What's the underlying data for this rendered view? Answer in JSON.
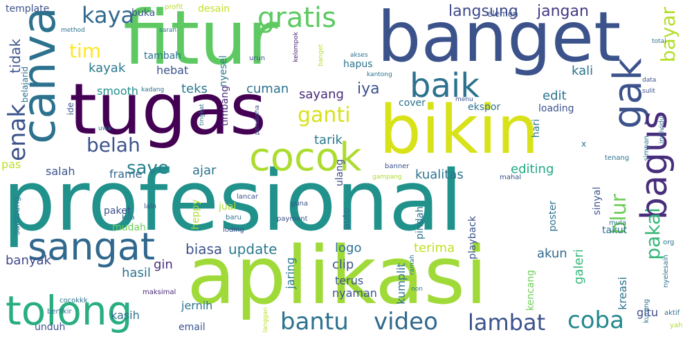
{
  "words": [
    {
      "text": "profesional",
      "color": "#21918c"
    },
    {
      "text": "aplikasi",
      "color": "#a0da39"
    },
    {
      "text": "tugas",
      "color": "#440154"
    },
    {
      "text": "fitur",
      "color": "#5ec962"
    },
    {
      "text": "banget",
      "color": "#3b528b"
    },
    {
      "text": "bikin",
      "color": "#d8e219"
    },
    {
      "text": "canva",
      "color": "#2c728e"
    },
    {
      "text": "tolong",
      "color": "#28ae80"
    },
    {
      "text": "sangat",
      "color": "#31688e"
    },
    {
      "text": "cocok",
      "color": "#addc30"
    },
    {
      "text": "baik",
      "color": "#2c728e"
    },
    {
      "text": "gak",
      "color": "#3b528b"
    },
    {
      "text": "bagus",
      "color": "#472d7b"
    },
    {
      "text": "gratis",
      "color": "#5ec962"
    },
    {
      "text": "bantu",
      "color": "#2c728e"
    },
    {
      "text": "video",
      "color": "#31688e"
    },
    {
      "text": "lambat",
      "color": "#3b528b"
    },
    {
      "text": "coba",
      "color": "#23888e"
    },
    {
      "text": "kaya",
      "color": "#31688e"
    },
    {
      "text": "enak",
      "color": "#3b528b"
    },
    {
      "text": "ganti",
      "color": "#d8e219"
    },
    {
      "text": "belah",
      "color": "#3b528b"
    },
    {
      "text": "save",
      "color": "#26828e"
    },
    {
      "text": "tim",
      "color": "#fde725"
    },
    {
      "text": "pakai",
      "color": "#35b779"
    },
    {
      "text": "blur",
      "color": "#6ece58"
    },
    {
      "text": "bayar",
      "color": "#b5de2b"
    },
    {
      "text": "langsung",
      "color": "#3e4989"
    },
    {
      "text": "jangan",
      "color": "#443983"
    },
    {
      "text": "tidak",
      "color": "#3b528b"
    },
    {
      "text": "kayak",
      "color": "#2a788e"
    },
    {
      "text": "smooth",
      "color": "#228c8d"
    },
    {
      "text": "teks",
      "color": "#2a788e"
    },
    {
      "text": "cuman",
      "color": "#2c728e"
    },
    {
      "text": "iya",
      "color": "#3b528b"
    },
    {
      "text": "sayang",
      "color": "#482878"
    },
    {
      "text": "edit",
      "color": "#2c728e"
    },
    {
      "text": "kali",
      "color": "#2c728e"
    },
    {
      "text": "tarik",
      "color": "#2a788e"
    },
    {
      "text": "kualitas",
      "color": "#2c728e"
    },
    {
      "text": "editing",
      "color": "#22a884"
    },
    {
      "text": "ajar",
      "color": "#2c728e"
    },
    {
      "text": "salah",
      "color": "#3b528b"
    },
    {
      "text": "frame",
      "color": "#31688e"
    },
    {
      "text": "pas",
      "color": "#bddf26"
    },
    {
      "text": "biasa",
      "color": "#3b528b"
    },
    {
      "text": "update",
      "color": "#2a788e"
    },
    {
      "text": "logo",
      "color": "#2c728e"
    },
    {
      "text": "terima",
      "color": "#c2df23"
    },
    {
      "text": "akun",
      "color": "#31688e"
    },
    {
      "text": "banyak",
      "color": "#3e4989"
    },
    {
      "text": "gin",
      "color": "#472d7b"
    },
    {
      "text": "hasil",
      "color": "#2c728e"
    },
    {
      "text": "kasih",
      "color": "#2c728e"
    },
    {
      "text": "jernih",
      "color": "#2c728e"
    },
    {
      "text": "email",
      "color": "#3b528b"
    },
    {
      "text": "unduh",
      "color": "#3b528b"
    },
    {
      "text": "clip",
      "color": "#3b528b"
    },
    {
      "text": "terus",
      "color": "#3b528b"
    },
    {
      "text": "nyaman",
      "color": "#3b528b"
    },
    {
      "text": "jaring",
      "color": "#2a788e"
    },
    {
      "text": "kumplit",
      "color": "#2c728e"
    },
    {
      "text": "galeri",
      "color": "#35b779"
    },
    {
      "text": "kencang",
      "color": "#6ece58"
    },
    {
      "text": "kreasi",
      "color": "#2c728e"
    },
    {
      "text": "gitu",
      "color": "#3e4989"
    },
    {
      "text": "hebat",
      "color": "#3b528b"
    },
    {
      "text": "tambah",
      "color": "#2c728e"
    },
    {
      "text": "buka",
      "color": "#3b528b"
    },
    {
      "text": "template",
      "color": "#3b528b"
    },
    {
      "text": "desain",
      "color": "#c2df23"
    },
    {
      "text": "profit",
      "color": "#b5de2b"
    },
    {
      "text": "nyesel",
      "color": "#2a788e"
    },
    {
      "text": "timbang",
      "color": "#482878"
    },
    {
      "text": "hapus",
      "color": "#2c728e"
    },
    {
      "text": "cover",
      "color": "#2c728e"
    },
    {
      "text": "ekspor",
      "color": "#2c728e"
    },
    {
      "text": "loading",
      "color": "#3b528b"
    },
    {
      "text": "hari",
      "color": "#2c728e"
    },
    {
      "text": "ulang",
      "color": "#3e4989"
    },
    {
      "text": "elemen",
      "color": "#3b528b"
    },
    {
      "text": "belajarid",
      "color": "#2c728e"
    },
    {
      "text": "paket",
      "color": "#3b528b"
    },
    {
      "text": "heppy",
      "color": "#addc30"
    },
    {
      "text": "jual",
      "color": "#addc30"
    },
    {
      "text": "mudah",
      "color": "#6ece58"
    },
    {
      "text": "auto",
      "color": "#2c728e"
    },
    {
      "text": "pindah",
      "color": "#2c728e"
    },
    {
      "text": "playback",
      "color": "#3b528b"
    },
    {
      "text": "poster",
      "color": "#2c728e"
    },
    {
      "text": "sinyal",
      "color": "#3b528b"
    },
    {
      "text": "takut",
      "color": "#2c728e"
    },
    {
      "text": "sambung",
      "color": "#2a788e"
    },
    {
      "text": "lain",
      "color": "#3b528b"
    },
    {
      "text": "kita",
      "color": "#2c728e"
    },
    {
      "text": "baru",
      "color": "#2c728e"
    },
    {
      "text": "loding",
      "color": "#3b528b"
    },
    {
      "text": "payment",
      "color": "#3b528b"
    },
    {
      "text": "cocokkk",
      "color": "#2c728e"
    },
    {
      "text": "berfikir",
      "color": "#2c728e"
    },
    {
      "text": "maksimal",
      "color": "#482878"
    },
    {
      "text": "langgan",
      "color": "#b5de2b"
    },
    {
      "text": "aktif",
      "color": "#2c728e"
    },
    {
      "text": "yah",
      "color": "#addc30"
    },
    {
      "text": "org",
      "color": "#2c728e"
    },
    {
      "text": "nyelesain",
      "color": "#2c728e"
    },
    {
      "text": "mula",
      "color": "#2c728e"
    },
    {
      "text": "kurang",
      "color": "#2c728e"
    },
    {
      "text": "ramah",
      "color": "#2c728e"
    },
    {
      "text": "lancar",
      "color": "#3b528b"
    },
    {
      "text": "guna",
      "color": "#3b528b"
    },
    {
      "text": "gampang",
      "color": "#addc30"
    },
    {
      "text": "mahal",
      "color": "#3b528b"
    },
    {
      "text": "tenang",
      "color": "#2c728e"
    },
    {
      "text": "simpan",
      "color": "#2c728e"
    },
    {
      "text": "individu",
      "color": "#2c728e"
    },
    {
      "text": "kantong",
      "color": "#2c728e"
    },
    {
      "text": "akses",
      "color": "#2c728e"
    },
    {
      "text": "data",
      "color": "#3b528b"
    },
    {
      "text": "sulit",
      "color": "#3b528b"
    },
    {
      "text": "total",
      "color": "#2c728e"
    },
    {
      "text": "saran",
      "color": "#2c728e"
    },
    {
      "text": "method",
      "color": "#2c728e"
    },
    {
      "text": "urun",
      "color": "#3b528b"
    },
    {
      "text": "kelompok",
      "color": "#482878"
    },
    {
      "text": "banget",
      "color": "#b5de2b"
    },
    {
      "text": "banner",
      "color": "#3b528b"
    },
    {
      "text": "perubaha",
      "color": "#3b528b"
    },
    {
      "text": "tingkat",
      "color": "#2c728e"
    },
    {
      "text": "uwa",
      "color": "#2c728e"
    },
    {
      "text": "kadang",
      "color": "#2c728e"
    },
    {
      "text": "menu",
      "color": "#3b528b"
    },
    {
      "text": "ide",
      "color": "#3b528b"
    },
    {
      "text": "x",
      "color": "#2c728e"
    },
    {
      "text": "non",
      "color": "#2c728e"
    }
  ]
}
